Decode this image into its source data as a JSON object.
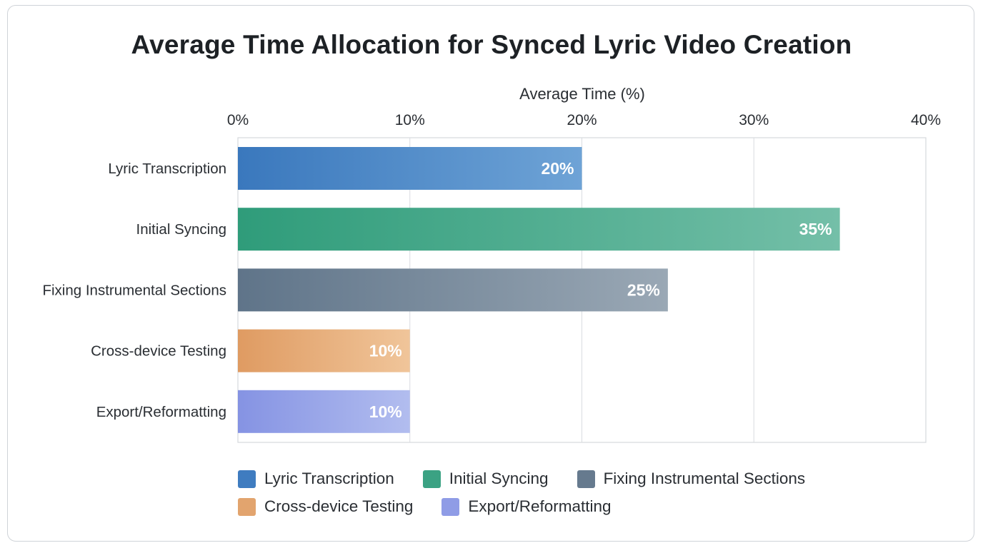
{
  "chart_data": {
    "type": "bar",
    "orientation": "horizontal",
    "title": "Average Time Allocation for Synced Lyric Video Creation",
    "xlabel": "Average Time (%)",
    "ylabel": "",
    "xlim": [
      0,
      40
    ],
    "x_ticks": [
      "0%",
      "10%",
      "20%",
      "30%",
      "40%"
    ],
    "x_tick_values": [
      0,
      10,
      20,
      30,
      40
    ],
    "grid": true,
    "legend_position": "bottom",
    "categories": [
      "Lyric Transcription",
      "Initial Syncing",
      "Fixing Instrumental Sections",
      "Cross-device Testing",
      "Export/Reformatting"
    ],
    "values": [
      20,
      35,
      25,
      10,
      10
    ],
    "value_labels": [
      "20%",
      "35%",
      "25%",
      "10%",
      "10%"
    ],
    "colors": [
      [
        "#3a78bd",
        "#6ea3d6"
      ],
      [
        "#2f9c7a",
        "#74bfa8"
      ],
      [
        "#5f7489",
        "#9aa8b5"
      ],
      [
        "#df9b62",
        "#f0c59a"
      ],
      [
        "#8593e3",
        "#b2bdef"
      ]
    ],
    "legend": [
      {
        "label": "Lyric Transcription",
        "color": "#3f7cc0"
      },
      {
        "label": "Initial Syncing",
        "color": "#3ba283"
      },
      {
        "label": "Fixing Instrumental Sections",
        "color": "#667a8e"
      },
      {
        "label": "Cross-device Testing",
        "color": "#e2a46e"
      },
      {
        "label": "Export/Reformatting",
        "color": "#8f9ce6"
      }
    ]
  }
}
